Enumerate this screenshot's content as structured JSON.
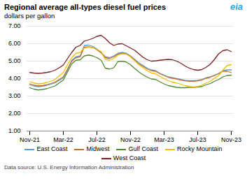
{
  "chart_data": {
    "type": "line",
    "title": "Regional average all-types diesel fuel prices",
    "subtitle": "dollars per gallon",
    "source": "Data source: U.S. Energy Information Administration",
    "annotations": [
      "eia"
    ],
    "categories": [
      "Nov-21",
      null,
      null,
      null,
      null,
      null,
      null,
      null,
      "Mar-22",
      null,
      null,
      null,
      null,
      null,
      null,
      null,
      "Jul-22",
      null,
      null,
      null,
      null,
      null,
      null,
      null,
      "Nov-22",
      null,
      null,
      null,
      null,
      null,
      null,
      null,
      "Mar-23",
      null,
      null,
      null,
      null,
      null,
      null,
      null,
      "Jul-23",
      null,
      null,
      null,
      null,
      null,
      null,
      null,
      "Nov-23"
    ],
    "ylim": [
      1.0,
      7.0
    ],
    "yticks": [
      {
        "value": 1.0,
        "label": "1.00"
      },
      {
        "value": 2.0,
        "label": "2.00"
      },
      {
        "value": 3.0,
        "label": "3.00"
      },
      {
        "value": 4.0,
        "label": "4.00"
      },
      {
        "value": 5.0,
        "label": "5.00"
      },
      {
        "value": 6.0,
        "label": "6.00"
      },
      {
        "value": 7.0,
        "label": "7.00"
      }
    ],
    "grid": true,
    "legend": "bottom",
    "series": [
      {
        "name": "East Coast",
        "color": "#5B9BD5",
        "values": [
          3.65,
          3.58,
          3.54,
          3.57,
          3.61,
          3.68,
          3.75,
          3.9,
          4.05,
          4.5,
          5.05,
          5.25,
          5.3,
          5.9,
          5.92,
          5.85,
          5.7,
          5.5,
          5.25,
          5.2,
          5.3,
          5.45,
          5.5,
          5.45,
          5.3,
          5.1,
          4.9,
          4.75,
          4.6,
          4.5,
          4.45,
          4.3,
          4.2,
          4.1,
          4.05,
          4.0,
          3.95,
          3.9,
          3.88,
          3.88,
          3.9,
          3.95,
          4.05,
          4.1,
          4.2,
          4.3,
          4.45,
          4.5,
          4.5
        ]
      },
      {
        "name": "Midwest",
        "color": "#C07030",
        "values": [
          3.7,
          3.63,
          3.58,
          3.6,
          3.65,
          3.72,
          3.8,
          3.95,
          4.1,
          4.55,
          5.0,
          5.2,
          5.25,
          5.8,
          5.82,
          5.78,
          5.65,
          5.48,
          5.2,
          5.15,
          5.25,
          5.4,
          5.45,
          5.42,
          5.28,
          5.05,
          4.85,
          4.7,
          4.55,
          4.45,
          4.42,
          4.28,
          4.18,
          4.08,
          4.02,
          3.98,
          3.92,
          3.88,
          3.85,
          3.85,
          3.88,
          3.92,
          4.02,
          4.08,
          4.18,
          4.28,
          4.42,
          4.42,
          4.35
        ]
      },
      {
        "name": "Gulf Coast",
        "color": "#4E8B2E",
        "values": [
          3.48,
          3.4,
          3.35,
          3.38,
          3.42,
          3.5,
          3.58,
          3.75,
          3.92,
          4.38,
          4.85,
          5.05,
          5.08,
          5.3,
          5.35,
          5.3,
          5.2,
          5.05,
          4.6,
          4.55,
          4.62,
          4.98,
          5.0,
          4.95,
          4.8,
          4.58,
          4.38,
          4.22,
          4.08,
          3.98,
          3.95,
          3.82,
          3.7,
          3.6,
          3.55,
          3.5,
          3.48,
          3.48,
          3.5,
          3.5,
          3.52,
          3.55,
          3.65,
          3.72,
          3.85,
          3.95,
          4.1,
          4.18,
          4.2
        ]
      },
      {
        "name": "Rocky Mountain",
        "color": "#F0BE00",
        "values": [
          3.82,
          3.75,
          3.7,
          3.72,
          3.78,
          3.85,
          3.95,
          4.15,
          4.35,
          4.8,
          5.2,
          5.45,
          5.5,
          5.75,
          5.8,
          5.78,
          5.68,
          5.55,
          5.1,
          5.05,
          5.15,
          5.35,
          5.42,
          5.4,
          5.25,
          5.02,
          4.8,
          4.62,
          4.45,
          4.32,
          4.28,
          4.12,
          4.0,
          3.88,
          3.8,
          3.75,
          3.68,
          3.6,
          3.55,
          3.52,
          3.55,
          3.62,
          3.75,
          3.85,
          4.02,
          4.18,
          4.48,
          4.75,
          4.8
        ]
      },
      {
        "name": "West Coast",
        "color": "#7B2020",
        "values": [
          4.35,
          4.32,
          4.3,
          4.32,
          4.35,
          4.4,
          4.48,
          4.62,
          4.78,
          5.15,
          5.5,
          5.8,
          5.9,
          6.15,
          6.22,
          6.3,
          6.42,
          6.48,
          6.3,
          6.05,
          5.9,
          5.98,
          6.0,
          5.88,
          5.75,
          5.62,
          5.42,
          5.22,
          5.08,
          5.0,
          5.02,
          5.05,
          5.08,
          5.1,
          5.08,
          5.0,
          4.88,
          4.72,
          4.6,
          4.52,
          4.48,
          4.52,
          4.65,
          4.82,
          5.1,
          5.42,
          5.6,
          5.65,
          5.55
        ]
      }
    ]
  }
}
